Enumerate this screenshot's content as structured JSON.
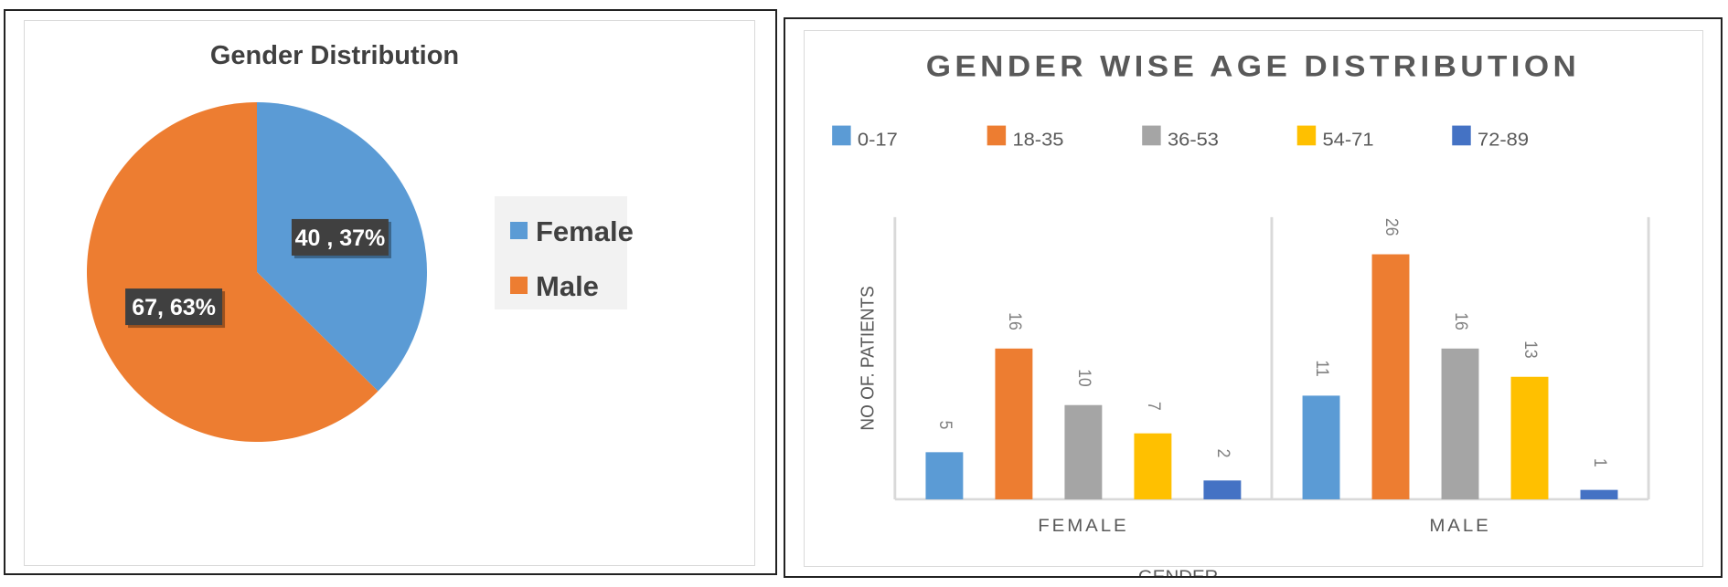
{
  "chart_data": [
    {
      "type": "pie",
      "title": "Gender Distribution",
      "slices": [
        {
          "name": "Female",
          "value": 40,
          "label": "40 , 37%",
          "color": "#5b9bd5"
        },
        {
          "name": "Male",
          "value": 67,
          "label": "67, 63%",
          "color": "#ed7d31"
        }
      ],
      "legend_position": "right",
      "label_box_color": "#404040"
    },
    {
      "type": "bar",
      "title": "GENDER WISE AGE DISTRIBUTION",
      "categories": [
        "FEMALE",
        "MALE"
      ],
      "series": [
        {
          "name": "0-17",
          "values": [
            5,
            11
          ],
          "color": "#5b9bd5"
        },
        {
          "name": "18-35",
          "values": [
            16,
            26
          ],
          "color": "#ed7d31"
        },
        {
          "name": "36-53",
          "values": [
            10,
            16
          ],
          "color": "#a5a5a5"
        },
        {
          "name": "54-71",
          "values": [
            7,
            13
          ],
          "color": "#ffc000"
        },
        {
          "name": "72-89",
          "values": [
            2,
            1
          ],
          "color": "#4472c4"
        }
      ],
      "xlabel": "GENDER",
      "ylabel": "NO OF. PATIENTS",
      "ylim": [
        0,
        30
      ],
      "legend_position": "top",
      "grid": false
    }
  ]
}
